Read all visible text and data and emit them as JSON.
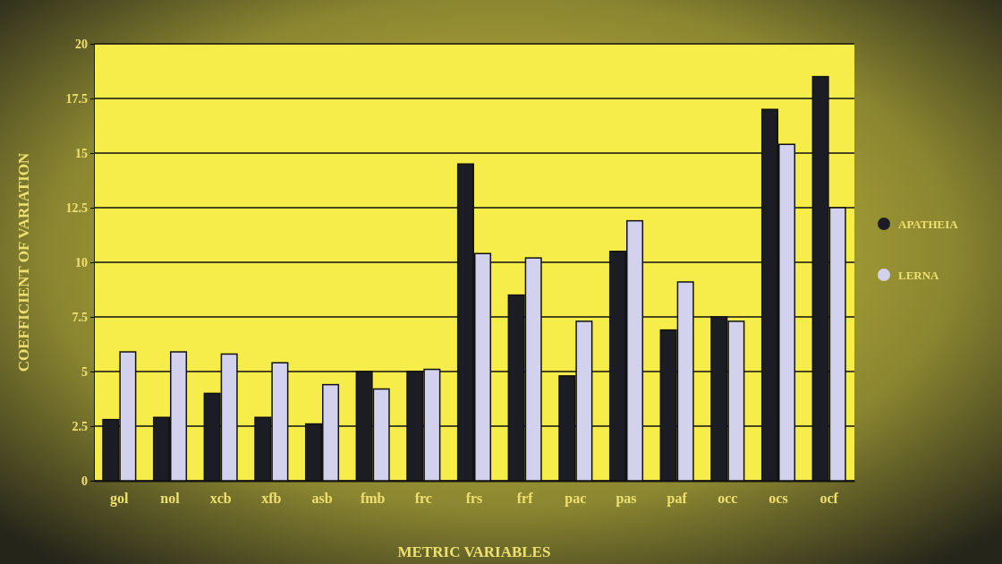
{
  "chart_data": {
    "type": "bar",
    "xlabel": "METRIC VARIABLES",
    "ylabel": "COEFFICIENT OF VARIATION",
    "categories": [
      "gol",
      "nol",
      "xcb",
      "xfb",
      "asb",
      "fmb",
      "frc",
      "frs",
      "frf",
      "pac",
      "pas",
      "paf",
      "occ",
      "ocs",
      "ocf"
    ],
    "series": [
      {
        "name": "APATHEIA",
        "color": "#1c1c24",
        "values": [
          2.8,
          2.9,
          4.0,
          2.9,
          2.6,
          5.0,
          5.0,
          14.5,
          8.5,
          4.8,
          10.5,
          6.9,
          7.5,
          17.0,
          18.5
        ]
      },
      {
        "name": "LERNA",
        "color": "#d2d2ee",
        "values": [
          5.9,
          5.9,
          5.8,
          5.4,
          4.4,
          4.2,
          5.1,
          10.4,
          10.2,
          7.3,
          11.9,
          9.1,
          7.3,
          15.4,
          12.5
        ]
      }
    ],
    "ylim": [
      0,
      20
    ],
    "yticks": [
      0,
      2.5,
      5,
      7.5,
      10,
      12.5,
      15,
      17.5,
      20
    ],
    "grid": "y",
    "legend": "right"
  }
}
